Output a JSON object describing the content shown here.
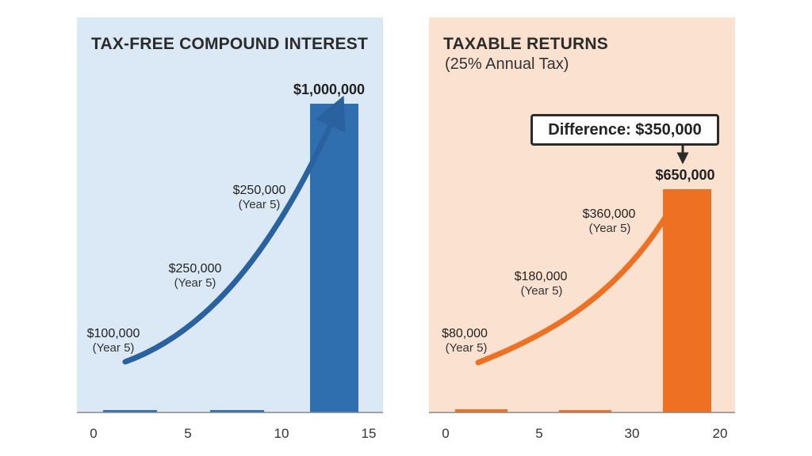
{
  "chart_data": [
    {
      "type": "bar",
      "title": "TAX-FREE COMPOUND INTEREST",
      "subtitle": "",
      "x_ticks": [
        "0",
        "5",
        "10",
        "15"
      ],
      "bars": [
        {
          "label": "",
          "value": 0
        },
        {
          "label": "",
          "value": 0
        },
        {
          "label": "$1,000,000",
          "value": 1000000
        }
      ],
      "growth_curve_annotations": [
        {
          "value": "$100,000",
          "note": "(Year 5)"
        },
        {
          "value": "$250,000",
          "note": "(Year 5)"
        },
        {
          "value": "$250,000",
          "note": "(Year 5)"
        }
      ],
      "colors": {
        "bar": "#2f6fb0",
        "curve": "#2f6fb0",
        "background": "#dbe8f6"
      }
    },
    {
      "type": "bar",
      "title": "TAXABLE RETURNS",
      "subtitle": "(25% Annual Tax)",
      "x_ticks": [
        "0",
        "5",
        "30",
        "20"
      ],
      "bars": [
        {
          "label": "",
          "value": 0
        },
        {
          "label": "",
          "value": 0
        },
        {
          "label": "$650,000",
          "value": 650000
        }
      ],
      "growth_curve_annotations": [
        {
          "value": "$80,000",
          "note": "(Year 5)"
        },
        {
          "value": "$180,000",
          "note": "(Year 5)"
        },
        {
          "value": "$360,000",
          "note": "(Year 5)"
        }
      ],
      "callout": "Difference: $350,000",
      "colors": {
        "bar": "#ee7023",
        "curve": "#ee7023",
        "background": "#fbe1cf"
      }
    }
  ]
}
